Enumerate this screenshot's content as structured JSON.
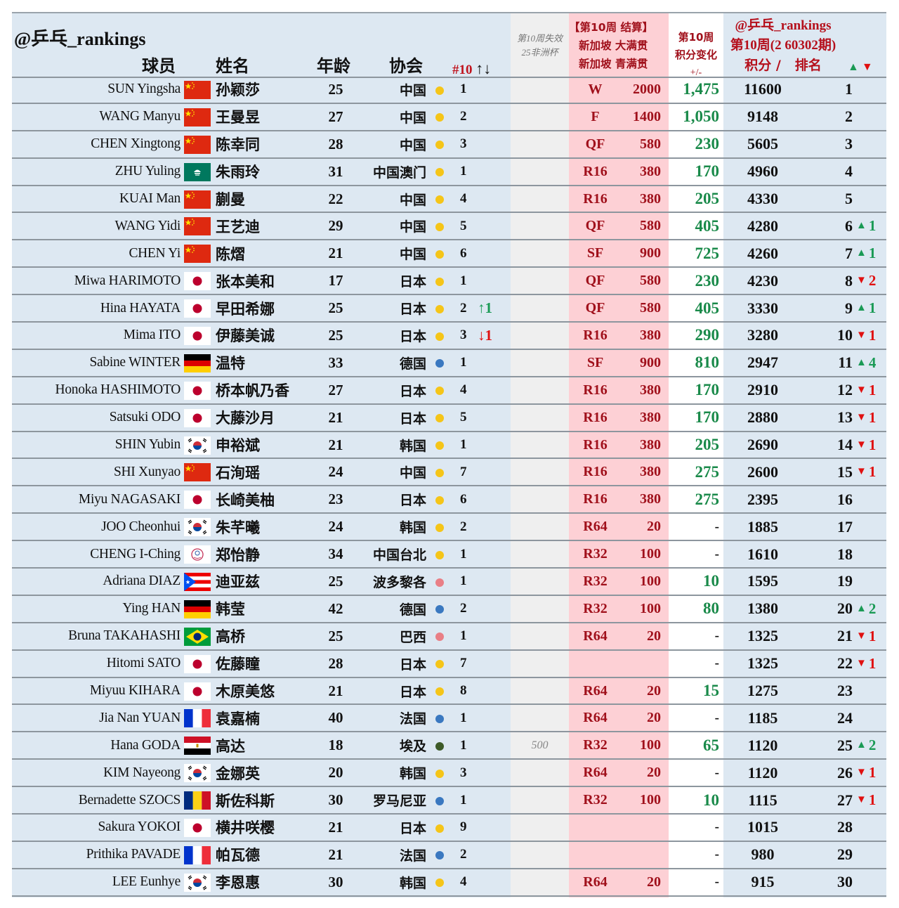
{
  "header": {
    "brand": "@乒乓_rankings",
    "col_player": "球员",
    "col_name": "姓名",
    "col_age": "年龄",
    "col_assoc": "协会",
    "col_nat_rank": "#10",
    "col_nat_rank_arrows": "↑↓",
    "expire_line1": "第10周失效",
    "expire_line2": "25非洲杯",
    "settle_line1": "【第10周 结算】",
    "settle_line2": "新加坡 大满贯",
    "settle_line3": "新加坡 青满贯",
    "change_line1": "第10周",
    "change_line2": "积分变化",
    "change_line3": "+/-",
    "ranking_line1": "@乒乓_rankings",
    "ranking_line2": "第10周(2 60302期)",
    "ranking_line3": "积分 /   排名",
    "move_up_icon": "▲",
    "move_down_icon": "▼"
  },
  "colors": {
    "gold": "#f5c518",
    "blue": "#3a78c0",
    "pink": "#e97f86",
    "green": "#3d5a28",
    "up": "#1a9a55",
    "down": "#e01010",
    "settle_text": "#a0101b",
    "change_text": "#1a8a4a"
  },
  "rows": [
    {
      "en": "SUN Yingsha",
      "flag": "china",
      "cn": "孙颖莎",
      "age": "25",
      "assoc": "中国",
      "dot": "gold",
      "nat_rank": "1",
      "nat_chg": "",
      "nat_dir": "",
      "expire": "",
      "round": "W",
      "round_pts": "2000",
      "change": "1,475",
      "points": "11600",
      "rank": "1",
      "move": "",
      "dir": ""
    },
    {
      "en": "WANG Manyu",
      "flag": "china",
      "cn": "王曼昱",
      "age": "27",
      "assoc": "中国",
      "dot": "gold",
      "nat_rank": "2",
      "nat_chg": "",
      "nat_dir": "",
      "expire": "",
      "round": "F",
      "round_pts": "1400",
      "change": "1,050",
      "points": "9148",
      "rank": "2",
      "move": "",
      "dir": ""
    },
    {
      "en": "CHEN Xingtong",
      "flag": "china",
      "cn": "陈幸同",
      "age": "28",
      "assoc": "中国",
      "dot": "gold",
      "nat_rank": "3",
      "nat_chg": "",
      "nat_dir": "",
      "expire": "",
      "round": "QF",
      "round_pts": "580",
      "change": "230",
      "points": "5605",
      "rank": "3",
      "move": "",
      "dir": ""
    },
    {
      "en": "ZHU Yuling",
      "flag": "macao",
      "cn": "朱雨玲",
      "age": "31",
      "assoc": "中国澳门",
      "dot": "gold",
      "nat_rank": "1",
      "nat_chg": "",
      "nat_dir": "",
      "expire": "",
      "round": "R16",
      "round_pts": "380",
      "change": "170",
      "points": "4960",
      "rank": "4",
      "move": "",
      "dir": ""
    },
    {
      "en": "KUAI Man",
      "flag": "china",
      "cn": "蒯曼",
      "age": "22",
      "assoc": "中国",
      "dot": "gold",
      "nat_rank": "4",
      "nat_chg": "",
      "nat_dir": "",
      "expire": "",
      "round": "R16",
      "round_pts": "380",
      "change": "205",
      "points": "4330",
      "rank": "5",
      "move": "",
      "dir": ""
    },
    {
      "en": "WANG Yidi",
      "flag": "china",
      "cn": "王艺迪",
      "age": "29",
      "assoc": "中国",
      "dot": "gold",
      "nat_rank": "5",
      "nat_chg": "",
      "nat_dir": "",
      "expire": "",
      "round": "QF",
      "round_pts": "580",
      "change": "405",
      "points": "4280",
      "rank": "6",
      "move": "1",
      "dir": "up"
    },
    {
      "en": "CHEN Yi",
      "flag": "china",
      "cn": "陈熠",
      "age": "21",
      "assoc": "中国",
      "dot": "gold",
      "nat_rank": "6",
      "nat_chg": "",
      "nat_dir": "",
      "expire": "",
      "round": "SF",
      "round_pts": "900",
      "change": "725",
      "points": "4260",
      "rank": "7",
      "move": "1",
      "dir": "up"
    },
    {
      "en": "Miwa HARIMOTO",
      "flag": "japan",
      "cn": "张本美和",
      "age": "17",
      "assoc": "日本",
      "dot": "gold",
      "nat_rank": "1",
      "nat_chg": "",
      "nat_dir": "",
      "expire": "",
      "round": "QF",
      "round_pts": "580",
      "change": "230",
      "points": "4230",
      "rank": "8",
      "move": "2",
      "dir": "down"
    },
    {
      "en": "Hina HAYATA",
      "flag": "japan",
      "cn": "早田希娜",
      "age": "25",
      "assoc": "日本",
      "dot": "gold",
      "nat_rank": "2",
      "nat_chg": "1",
      "nat_dir": "up",
      "expire": "",
      "round": "QF",
      "round_pts": "580",
      "change": "405",
      "points": "3330",
      "rank": "9",
      "move": "1",
      "dir": "up"
    },
    {
      "en": "Mima ITO",
      "flag": "japan",
      "cn": "伊藤美诚",
      "age": "25",
      "assoc": "日本",
      "dot": "gold",
      "nat_rank": "3",
      "nat_chg": "1",
      "nat_dir": "down",
      "expire": "",
      "round": "R16",
      "round_pts": "380",
      "change": "290",
      "points": "3280",
      "rank": "10",
      "move": "1",
      "dir": "down"
    },
    {
      "en": "Sabine WINTER",
      "flag": "germany",
      "cn": "温特",
      "age": "33",
      "assoc": "德国",
      "dot": "blue",
      "nat_rank": "1",
      "nat_chg": "",
      "nat_dir": "",
      "expire": "",
      "round": "SF",
      "round_pts": "900",
      "change": "810",
      "points": "2947",
      "rank": "11",
      "move": "4",
      "dir": "up"
    },
    {
      "en": "Honoka HASHIMOTO",
      "flag": "japan",
      "cn": "桥本帆乃香",
      "age": "27",
      "assoc": "日本",
      "dot": "gold",
      "nat_rank": "4",
      "nat_chg": "",
      "nat_dir": "",
      "expire": "",
      "round": "R16",
      "round_pts": "380",
      "change": "170",
      "points": "2910",
      "rank": "12",
      "move": "1",
      "dir": "down"
    },
    {
      "en": "Satsuki ODO",
      "flag": "japan",
      "cn": "大藤沙月",
      "age": "21",
      "assoc": "日本",
      "dot": "gold",
      "nat_rank": "5",
      "nat_chg": "",
      "nat_dir": "",
      "expire": "",
      "round": "R16",
      "round_pts": "380",
      "change": "170",
      "points": "2880",
      "rank": "13",
      "move": "1",
      "dir": "down"
    },
    {
      "en": "SHIN Yubin",
      "flag": "korea",
      "cn": "申裕斌",
      "age": "21",
      "assoc": "韩国",
      "dot": "gold",
      "nat_rank": "1",
      "nat_chg": "",
      "nat_dir": "",
      "expire": "",
      "round": "R16",
      "round_pts": "380",
      "change": "205",
      "points": "2690",
      "rank": "14",
      "move": "1",
      "dir": "down"
    },
    {
      "en": "SHI Xunyao",
      "flag": "china",
      "cn": "石洵瑶",
      "age": "24",
      "assoc": "中国",
      "dot": "gold",
      "nat_rank": "7",
      "nat_chg": "",
      "nat_dir": "",
      "expire": "",
      "round": "R16",
      "round_pts": "380",
      "change": "275",
      "points": "2600",
      "rank": "15",
      "move": "1",
      "dir": "down"
    },
    {
      "en": "Miyu NAGASAKI",
      "flag": "japan",
      "cn": "长崎美柚",
      "age": "23",
      "assoc": "日本",
      "dot": "gold",
      "nat_rank": "6",
      "nat_chg": "",
      "nat_dir": "",
      "expire": "",
      "round": "R16",
      "round_pts": "380",
      "change": "275",
      "points": "2395",
      "rank": "16",
      "move": "",
      "dir": ""
    },
    {
      "en": "JOO Cheonhui",
      "flag": "korea",
      "cn": "朱芊曦",
      "age": "24",
      "assoc": "韩国",
      "dot": "gold",
      "nat_rank": "2",
      "nat_chg": "",
      "nat_dir": "",
      "expire": "",
      "round": "R64",
      "round_pts": "20",
      "change": "-",
      "points": "1885",
      "rank": "17",
      "move": "",
      "dir": ""
    },
    {
      "en": "CHENG I-Ching",
      "flag": "taipei",
      "cn": "郑怡静",
      "age": "34",
      "assoc": "中国台北",
      "dot": "gold",
      "nat_rank": "1",
      "nat_chg": "",
      "nat_dir": "",
      "expire": "",
      "round": "R32",
      "round_pts": "100",
      "change": "-",
      "points": "1610",
      "rank": "18",
      "move": "",
      "dir": ""
    },
    {
      "en": "Adriana DIAZ",
      "flag": "puertorico",
      "cn": "迪亚兹",
      "age": "25",
      "assoc": "波多黎各",
      "dot": "pink",
      "nat_rank": "1",
      "nat_chg": "",
      "nat_dir": "",
      "expire": "",
      "round": "R32",
      "round_pts": "100",
      "change": "10",
      "points": "1595",
      "rank": "19",
      "move": "",
      "dir": ""
    },
    {
      "en": "Ying HAN",
      "flag": "germany",
      "cn": "韩莹",
      "age": "42",
      "assoc": "德国",
      "dot": "blue",
      "nat_rank": "2",
      "nat_chg": "",
      "nat_dir": "",
      "expire": "",
      "round": "R32",
      "round_pts": "100",
      "change": "80",
      "points": "1380",
      "rank": "20",
      "move": "2",
      "dir": "up"
    },
    {
      "en": "Bruna TAKAHASHI",
      "flag": "brazil",
      "cn": "高桥",
      "age": "25",
      "assoc": "巴西",
      "dot": "pink",
      "nat_rank": "1",
      "nat_chg": "",
      "nat_dir": "",
      "expire": "",
      "round": "R64",
      "round_pts": "20",
      "change": "-",
      "points": "1325",
      "rank": "21",
      "move": "1",
      "dir": "down"
    },
    {
      "en": "Hitomi SATO",
      "flag": "japan",
      "cn": "佐藤瞳",
      "age": "28",
      "assoc": "日本",
      "dot": "gold",
      "nat_rank": "7",
      "nat_chg": "",
      "nat_dir": "",
      "expire": "",
      "round": "",
      "round_pts": "",
      "change": "-",
      "points": "1325",
      "rank": "22",
      "move": "1",
      "dir": "down"
    },
    {
      "en": "Miyuu KIHARA",
      "flag": "japan",
      "cn": "木原美悠",
      "age": "21",
      "assoc": "日本",
      "dot": "gold",
      "nat_rank": "8",
      "nat_chg": "",
      "nat_dir": "",
      "expire": "",
      "round": "R64",
      "round_pts": "20",
      "change": "15",
      "points": "1275",
      "rank": "23",
      "move": "",
      "dir": ""
    },
    {
      "en": "Jia Nan YUAN",
      "flag": "france",
      "cn": "袁嘉楠",
      "age": "40",
      "assoc": "法国",
      "dot": "blue",
      "nat_rank": "1",
      "nat_chg": "",
      "nat_dir": "",
      "expire": "",
      "round": "R64",
      "round_pts": "20",
      "change": "-",
      "points": "1185",
      "rank": "24",
      "move": "",
      "dir": ""
    },
    {
      "en": "Hana GODA",
      "flag": "egypt",
      "cn": "高达",
      "age": "18",
      "assoc": "埃及",
      "dot": "green",
      "nat_rank": "1",
      "nat_chg": "",
      "nat_dir": "",
      "expire": "500",
      "round": "R32",
      "round_pts": "100",
      "change": "65",
      "points": "1120",
      "rank": "25",
      "move": "2",
      "dir": "up"
    },
    {
      "en": "KIM Nayeong",
      "flag": "korea",
      "cn": "金娜英",
      "age": "20",
      "assoc": "韩国",
      "dot": "gold",
      "nat_rank": "3",
      "nat_chg": "",
      "nat_dir": "",
      "expire": "",
      "round": "R64",
      "round_pts": "20",
      "change": "-",
      "points": "1120",
      "rank": "26",
      "move": "1",
      "dir": "down"
    },
    {
      "en": "Bernadette SZOCS",
      "flag": "romania",
      "cn": "斯佐科斯",
      "age": "30",
      "assoc": "罗马尼亚",
      "dot": "blue",
      "nat_rank": "1",
      "nat_chg": "",
      "nat_dir": "",
      "expire": "",
      "round": "R32",
      "round_pts": "100",
      "change": "10",
      "points": "1115",
      "rank": "27",
      "move": "1",
      "dir": "down"
    },
    {
      "en": "Sakura YOKOI",
      "flag": "japan",
      "cn": "横井咲樱",
      "age": "21",
      "assoc": "日本",
      "dot": "gold",
      "nat_rank": "9",
      "nat_chg": "",
      "nat_dir": "",
      "expire": "",
      "round": "",
      "round_pts": "",
      "change": "-",
      "points": "1015",
      "rank": "28",
      "move": "",
      "dir": ""
    },
    {
      "en": "Prithika PAVADE",
      "flag": "france",
      "cn": "帕瓦德",
      "age": "21",
      "assoc": "法国",
      "dot": "blue",
      "nat_rank": "2",
      "nat_chg": "",
      "nat_dir": "",
      "expire": "",
      "round": "",
      "round_pts": "",
      "change": "-",
      "points": "980",
      "rank": "29",
      "move": "",
      "dir": ""
    },
    {
      "en": "LEE Eunhye",
      "flag": "korea",
      "cn": "李恩惠",
      "age": "30",
      "assoc": "韩国",
      "dot": "gold",
      "nat_rank": "4",
      "nat_chg": "",
      "nat_dir": "",
      "expire": "",
      "round": "R64",
      "round_pts": "20",
      "change": "-",
      "points": "915",
      "rank": "30",
      "move": "",
      "dir": ""
    }
  ]
}
